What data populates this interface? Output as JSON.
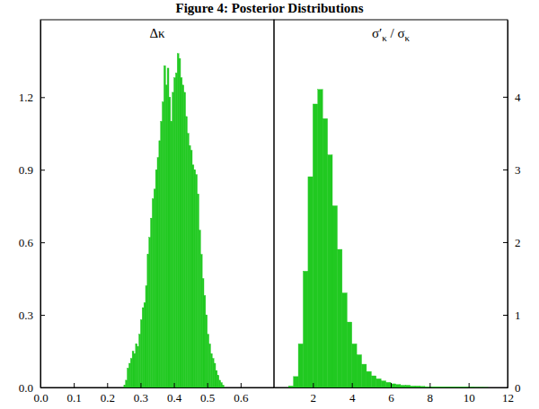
{
  "title": "Figure 4: Posterior Distributions",
  "chart_data": [
    {
      "type": "histogram",
      "title": "Δκ",
      "color": "#21c921",
      "bins": [
        0.25,
        0.255,
        0.26,
        0.265,
        0.27,
        0.275,
        0.28,
        0.285,
        0.29,
        0.295,
        0.3,
        0.305,
        0.31,
        0.315,
        0.32,
        0.325,
        0.33,
        0.335,
        0.34,
        0.345,
        0.35,
        0.355,
        0.36,
        0.365,
        0.37,
        0.375,
        0.38,
        0.385,
        0.39,
        0.395,
        0.4,
        0.405,
        0.41,
        0.415,
        0.42,
        0.425,
        0.43,
        0.435,
        0.44,
        0.445,
        0.45,
        0.455,
        0.46,
        0.465,
        0.47,
        0.475,
        0.48,
        0.485,
        0.49,
        0.495,
        0.5,
        0.505,
        0.51,
        0.515,
        0.52,
        0.525,
        0.53,
        0.535,
        0.54,
        0.545,
        0.55
      ],
      "counts": [
        0.01,
        0.03,
        0.08,
        0.1,
        0.12,
        0.15,
        0.14,
        0.18,
        0.17,
        0.22,
        0.28,
        0.33,
        0.35,
        0.42,
        0.55,
        0.62,
        0.7,
        0.78,
        0.82,
        0.9,
        0.95,
        1.02,
        1.1,
        1.18,
        1.33,
        1.25,
        1.32,
        1.2,
        1.1,
        1.22,
        1.28,
        1.3,
        1.38,
        1.36,
        1.28,
        1.25,
        1.22,
        1.12,
        1.05,
        1.0,
        0.98,
        0.92,
        0.9,
        0.88,
        0.8,
        0.65,
        0.55,
        0.45,
        0.38,
        0.3,
        0.22,
        0.18,
        0.14,
        0.12,
        0.1,
        0.07,
        0.05,
        0.03,
        0.02,
        0.01
      ],
      "xlim": [
        0,
        0.7
      ],
      "xticks": [
        {
          "value": 0,
          "label": "0.0"
        },
        0.1,
        0.2,
        0.3,
        0.4,
        0.5,
        0.6
      ],
      "ylim": [
        0,
        1.52
      ],
      "yticks": [
        {
          "value": 0,
          "label": "0.0"
        },
        0.3,
        0.6,
        0.9,
        1.2
      ]
    },
    {
      "type": "histogram",
      "title": "σ′κ / σκ",
      "color": "#21c921",
      "bins": [
        0.5,
        0.75,
        1,
        1.25,
        1.5,
        1.75,
        2,
        2.25,
        2.5,
        2.75,
        3,
        3.25,
        3.5,
        3.75,
        4,
        4.25,
        4.5,
        4.75,
        5,
        5.25,
        5.5,
        5.75,
        6,
        6.25,
        6.5,
        6.75,
        7,
        7.25,
        7.5,
        7.75,
        8,
        8.25,
        8.5,
        8.75,
        9,
        9.25,
        9.5,
        9.75,
        10,
        10.25,
        10.5,
        10.75,
        11
      ],
      "counts": [
        0,
        0.02,
        0.15,
        0.6,
        1.6,
        2.9,
        3.9,
        4.1,
        3.7,
        3.2,
        2.5,
        1.9,
        1.3,
        0.9,
        0.6,
        0.45,
        0.32,
        0.22,
        0.16,
        0.12,
        0.09,
        0.07,
        0.05,
        0.04,
        0.03,
        0.03,
        0.02,
        0.02,
        0.015,
        0.01,
        0.01,
        0.01,
        0.008,
        0.006,
        0.005,
        0.005,
        0.004,
        0.003,
        0.003,
        0.002,
        0.002,
        0.001
      ],
      "xlim": [
        0,
        12
      ],
      "xticks": [
        2,
        4,
        6,
        8,
        10,
        12
      ],
      "ylim": [
        0,
        5.06
      ],
      "yticks": [
        0,
        1,
        2,
        3,
        4
      ]
    }
  ]
}
